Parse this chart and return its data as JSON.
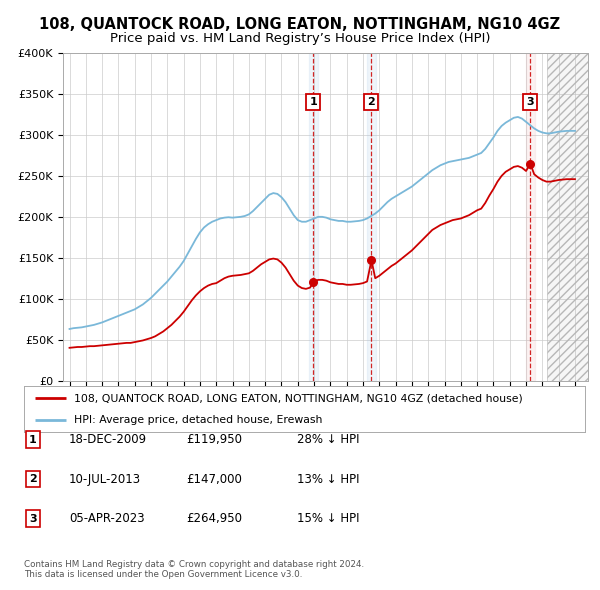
{
  "title": "108, QUANTOCK ROAD, LONG EATON, NOTTINGHAM, NG10 4GZ",
  "subtitle": "Price paid vs. HM Land Registry’s House Price Index (HPI)",
  "ylim": [
    0,
    400000
  ],
  "yticks": [
    0,
    50000,
    100000,
    150000,
    200000,
    250000,
    300000,
    350000,
    400000
  ],
  "ytick_labels": [
    "£0",
    "£50K",
    "£100K",
    "£150K",
    "£200K",
    "£250K",
    "£300K",
    "£350K",
    "£400K"
  ],
  "hpi_color": "#7ab8d9",
  "price_color": "#cc0000",
  "sale_year_floats": [
    2009.96,
    2013.52,
    2023.26
  ],
  "sale_prices": [
    119950,
    147000,
    264950
  ],
  "sale_labels": [
    "1",
    "2",
    "3"
  ],
  "legend_line1": "108, QUANTOCK ROAD, LONG EATON, NOTTINGHAM, NG10 4GZ (detached house)",
  "legend_line2": "HPI: Average price, detached house, Erewash",
  "table_data": [
    [
      "1",
      "18-DEC-2009",
      "£119,950",
      "28% ↓ HPI"
    ],
    [
      "2",
      "10-JUL-2013",
      "£147,000",
      "13% ↓ HPI"
    ],
    [
      "3",
      "05-APR-2023",
      "£264,950",
      "15% ↓ HPI"
    ]
  ],
  "footnote": "Contains HM Land Registry data © Crown copyright and database right 2024.\nThis data is licensed under the Open Government Licence v3.0.",
  "background_color": "#ffffff",
  "grid_color": "#cccccc",
  "title_fontsize": 10.5,
  "subtitle_fontsize": 9.5,
  "hpi_data": [
    [
      1995.0,
      63000
    ],
    [
      1995.25,
      64000
    ],
    [
      1995.5,
      64500
    ],
    [
      1995.75,
      65000
    ],
    [
      1996.0,
      66000
    ],
    [
      1996.25,
      67000
    ],
    [
      1996.5,
      68000
    ],
    [
      1996.75,
      69500
    ],
    [
      1997.0,
      71000
    ],
    [
      1997.25,
      73000
    ],
    [
      1997.5,
      75000
    ],
    [
      1997.75,
      77000
    ],
    [
      1998.0,
      79000
    ],
    [
      1998.25,
      81000
    ],
    [
      1998.5,
      83000
    ],
    [
      1998.75,
      85000
    ],
    [
      1999.0,
      87000
    ],
    [
      1999.25,
      90000
    ],
    [
      1999.5,
      93000
    ],
    [
      1999.75,
      97000
    ],
    [
      2000.0,
      101000
    ],
    [
      2000.25,
      106000
    ],
    [
      2000.5,
      111000
    ],
    [
      2000.75,
      116000
    ],
    [
      2001.0,
      121000
    ],
    [
      2001.25,
      127000
    ],
    [
      2001.5,
      133000
    ],
    [
      2001.75,
      139000
    ],
    [
      2002.0,
      146000
    ],
    [
      2002.25,
      155000
    ],
    [
      2002.5,
      164000
    ],
    [
      2002.75,
      173000
    ],
    [
      2003.0,
      181000
    ],
    [
      2003.25,
      187000
    ],
    [
      2003.5,
      191000
    ],
    [
      2003.75,
      194000
    ],
    [
      2004.0,
      196000
    ],
    [
      2004.25,
      198000
    ],
    [
      2004.5,
      199000
    ],
    [
      2004.75,
      199500
    ],
    [
      2005.0,
      199000
    ],
    [
      2005.25,
      199500
    ],
    [
      2005.5,
      200000
    ],
    [
      2005.75,
      201000
    ],
    [
      2006.0,
      203000
    ],
    [
      2006.25,
      207000
    ],
    [
      2006.5,
      212000
    ],
    [
      2006.75,
      217000
    ],
    [
      2007.0,
      222000
    ],
    [
      2007.25,
      227000
    ],
    [
      2007.5,
      229000
    ],
    [
      2007.75,
      228000
    ],
    [
      2008.0,
      224000
    ],
    [
      2008.25,
      218000
    ],
    [
      2008.5,
      210000
    ],
    [
      2008.75,
      202000
    ],
    [
      2009.0,
      196000
    ],
    [
      2009.25,
      194000
    ],
    [
      2009.5,
      194000
    ],
    [
      2009.75,
      196000
    ],
    [
      2010.0,
      198000
    ],
    [
      2010.25,
      200000
    ],
    [
      2010.5,
      200000
    ],
    [
      2010.75,
      199000
    ],
    [
      2011.0,
      197000
    ],
    [
      2011.25,
      196000
    ],
    [
      2011.5,
      195000
    ],
    [
      2011.75,
      195000
    ],
    [
      2012.0,
      194000
    ],
    [
      2012.25,
      194000
    ],
    [
      2012.5,
      194500
    ],
    [
      2012.75,
      195000
    ],
    [
      2013.0,
      196000
    ],
    [
      2013.25,
      198000
    ],
    [
      2013.5,
      201000
    ],
    [
      2013.75,
      204000
    ],
    [
      2014.0,
      208000
    ],
    [
      2014.25,
      213000
    ],
    [
      2014.5,
      218000
    ],
    [
      2014.75,
      222000
    ],
    [
      2015.0,
      225000
    ],
    [
      2015.25,
      228000
    ],
    [
      2015.5,
      231000
    ],
    [
      2015.75,
      234000
    ],
    [
      2016.0,
      237000
    ],
    [
      2016.25,
      241000
    ],
    [
      2016.5,
      245000
    ],
    [
      2016.75,
      249000
    ],
    [
      2017.0,
      253000
    ],
    [
      2017.25,
      257000
    ],
    [
      2017.5,
      260000
    ],
    [
      2017.75,
      263000
    ],
    [
      2018.0,
      265000
    ],
    [
      2018.25,
      267000
    ],
    [
      2018.5,
      268000
    ],
    [
      2018.75,
      269000
    ],
    [
      2019.0,
      270000
    ],
    [
      2019.25,
      271000
    ],
    [
      2019.5,
      272000
    ],
    [
      2019.75,
      274000
    ],
    [
      2020.0,
      276000
    ],
    [
      2020.25,
      278000
    ],
    [
      2020.5,
      283000
    ],
    [
      2020.75,
      290000
    ],
    [
      2021.0,
      297000
    ],
    [
      2021.25,
      305000
    ],
    [
      2021.5,
      311000
    ],
    [
      2021.75,
      315000
    ],
    [
      2022.0,
      318000
    ],
    [
      2022.25,
      321000
    ],
    [
      2022.5,
      322000
    ],
    [
      2022.75,
      320000
    ],
    [
      2023.0,
      316000
    ],
    [
      2023.25,
      312000
    ],
    [
      2023.5,
      308000
    ],
    [
      2023.75,
      305000
    ],
    [
      2024.0,
      303000
    ],
    [
      2024.25,
      302000
    ],
    [
      2024.5,
      302000
    ],
    [
      2024.75,
      303000
    ],
    [
      2025.0,
      304000
    ],
    [
      2025.5,
      305000
    ],
    [
      2026.0,
      305000
    ]
  ],
  "price_data": [
    [
      1995.0,
      40000
    ],
    [
      1995.25,
      40500
    ],
    [
      1995.5,
      41000
    ],
    [
      1995.75,
      41000
    ],
    [
      1996.0,
      41500
    ],
    [
      1996.25,
      42000
    ],
    [
      1996.5,
      42000
    ],
    [
      1996.75,
      42500
    ],
    [
      1997.0,
      43000
    ],
    [
      1997.25,
      43500
    ],
    [
      1997.5,
      44000
    ],
    [
      1997.75,
      44500
    ],
    [
      1998.0,
      45000
    ],
    [
      1998.25,
      45500
    ],
    [
      1998.5,
      46000
    ],
    [
      1998.75,
      46000
    ],
    [
      1999.0,
      47000
    ],
    [
      1999.25,
      48000
    ],
    [
      1999.5,
      49000
    ],
    [
      1999.75,
      50500
    ],
    [
      2000.0,
      52000
    ],
    [
      2000.25,
      54000
    ],
    [
      2000.5,
      57000
    ],
    [
      2000.75,
      60000
    ],
    [
      2001.0,
      64000
    ],
    [
      2001.25,
      68000
    ],
    [
      2001.5,
      73000
    ],
    [
      2001.75,
      78000
    ],
    [
      2002.0,
      84000
    ],
    [
      2002.25,
      91000
    ],
    [
      2002.5,
      98000
    ],
    [
      2002.75,
      104000
    ],
    [
      2003.0,
      109000
    ],
    [
      2003.25,
      113000
    ],
    [
      2003.5,
      116000
    ],
    [
      2003.75,
      118000
    ],
    [
      2004.0,
      119000
    ],
    [
      2004.25,
      122000
    ],
    [
      2004.5,
      125000
    ],
    [
      2004.75,
      127000
    ],
    [
      2005.0,
      128000
    ],
    [
      2005.25,
      128500
    ],
    [
      2005.5,
      129000
    ],
    [
      2005.75,
      130000
    ],
    [
      2006.0,
      131000
    ],
    [
      2006.25,
      134000
    ],
    [
      2006.5,
      138000
    ],
    [
      2006.75,
      142000
    ],
    [
      2007.0,
      145000
    ],
    [
      2007.25,
      148000
    ],
    [
      2007.5,
      149000
    ],
    [
      2007.75,
      148000
    ],
    [
      2008.0,
      144000
    ],
    [
      2008.25,
      138000
    ],
    [
      2008.5,
      130000
    ],
    [
      2008.75,
      122000
    ],
    [
      2009.0,
      116000
    ],
    [
      2009.25,
      113000
    ],
    [
      2009.5,
      112000
    ],
    [
      2009.75,
      113500
    ],
    [
      2009.96,
      119950
    ],
    [
      2010.0,
      121000
    ],
    [
      2010.25,
      123000
    ],
    [
      2010.5,
      123000
    ],
    [
      2010.75,
      122000
    ],
    [
      2011.0,
      120000
    ],
    [
      2011.25,
      119000
    ],
    [
      2011.5,
      118000
    ],
    [
      2011.75,
      118000
    ],
    [
      2012.0,
      117000
    ],
    [
      2012.25,
      117000
    ],
    [
      2012.5,
      117500
    ],
    [
      2012.75,
      118000
    ],
    [
      2013.0,
      119000
    ],
    [
      2013.25,
      121000
    ],
    [
      2013.52,
      147000
    ],
    [
      2013.75,
      125000
    ],
    [
      2014.0,
      128000
    ],
    [
      2014.25,
      132000
    ],
    [
      2014.5,
      136000
    ],
    [
      2014.75,
      140000
    ],
    [
      2015.0,
      143000
    ],
    [
      2015.25,
      147000
    ],
    [
      2015.5,
      151000
    ],
    [
      2015.75,
      155000
    ],
    [
      2016.0,
      159000
    ],
    [
      2016.25,
      164000
    ],
    [
      2016.5,
      169000
    ],
    [
      2016.75,
      174000
    ],
    [
      2017.0,
      179000
    ],
    [
      2017.25,
      184000
    ],
    [
      2017.5,
      187000
    ],
    [
      2017.75,
      190000
    ],
    [
      2018.0,
      192000
    ],
    [
      2018.25,
      194000
    ],
    [
      2018.5,
      196000
    ],
    [
      2018.75,
      197000
    ],
    [
      2019.0,
      198000
    ],
    [
      2019.25,
      200000
    ],
    [
      2019.5,
      202000
    ],
    [
      2019.75,
      205000
    ],
    [
      2020.0,
      208000
    ],
    [
      2020.25,
      210000
    ],
    [
      2020.5,
      217000
    ],
    [
      2020.75,
      226000
    ],
    [
      2021.0,
      234000
    ],
    [
      2021.25,
      243000
    ],
    [
      2021.5,
      250000
    ],
    [
      2021.75,
      255000
    ],
    [
      2022.0,
      258000
    ],
    [
      2022.25,
      261000
    ],
    [
      2022.5,
      262000
    ],
    [
      2022.75,
      260000
    ],
    [
      2023.0,
      256000
    ],
    [
      2023.26,
      264950
    ],
    [
      2023.5,
      252000
    ],
    [
      2023.75,
      248000
    ],
    [
      2024.0,
      245000
    ],
    [
      2024.25,
      243000
    ],
    [
      2024.5,
      243000
    ],
    [
      2024.75,
      244000
    ],
    [
      2025.0,
      245000
    ],
    [
      2025.5,
      246000
    ],
    [
      2026.0,
      246000
    ]
  ]
}
